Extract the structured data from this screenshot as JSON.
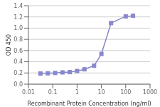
{
  "chart_data": {
    "type": "line",
    "x": [
      0.031,
      0.063,
      0.125,
      0.25,
      0.5,
      1,
      2,
      5,
      10,
      25,
      100,
      200
    ],
    "values": [
      0.19,
      0.195,
      0.2,
      0.21,
      0.215,
      0.235,
      0.265,
      0.33,
      0.54,
      1.09,
      1.21,
      1.22
    ],
    "color": "#8888cc",
    "marker": "square",
    "xlabel": "Recombinant Protein Concentration (ng/ml)",
    "ylabel": "OD 450",
    "log": "x",
    "xlim": [
      0.01,
      1000
    ],
    "xticks": [
      0.01,
      0.1,
      1,
      10,
      100,
      1000
    ],
    "ylim": [
      0,
      1.4
    ],
    "yticks": [
      {
        "value": 0,
        "label": "0.0"
      },
      0.2,
      0.4,
      0.6,
      0.8,
      {
        "value": 1.0,
        "label": "1.0"
      },
      1.2,
      1.4
    ],
    "grid": true
  }
}
